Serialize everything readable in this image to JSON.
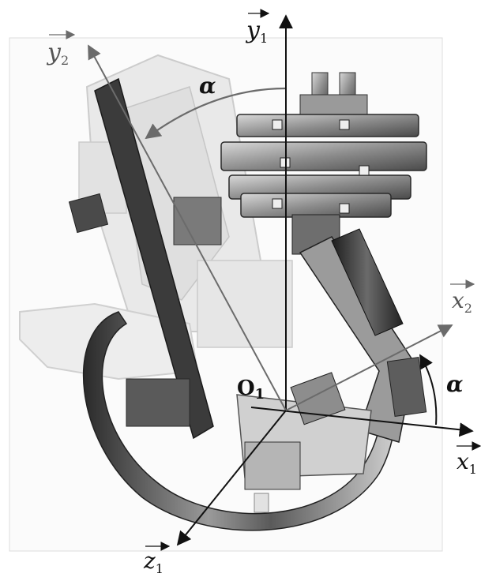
{
  "labels": {
    "y1": "y",
    "y1_sub": "1",
    "y2": "y",
    "y2_sub": "2",
    "x1": "x",
    "x1_sub": "1",
    "x2": "x",
    "x2_sub": "2",
    "z1": "z",
    "z1_sub": "1",
    "origin": "O",
    "origin_sub": "1",
    "alpha_top": "α",
    "alpha_right": "α"
  },
  "colors": {
    "axis_dark": "#111111",
    "axis_grey": "#6b6b6b",
    "metal_dark": "#3a3a3a",
    "metal_mid": "#8a8a8a",
    "metal_light": "#c9c9c9",
    "ghost": "#e6e6e6"
  }
}
